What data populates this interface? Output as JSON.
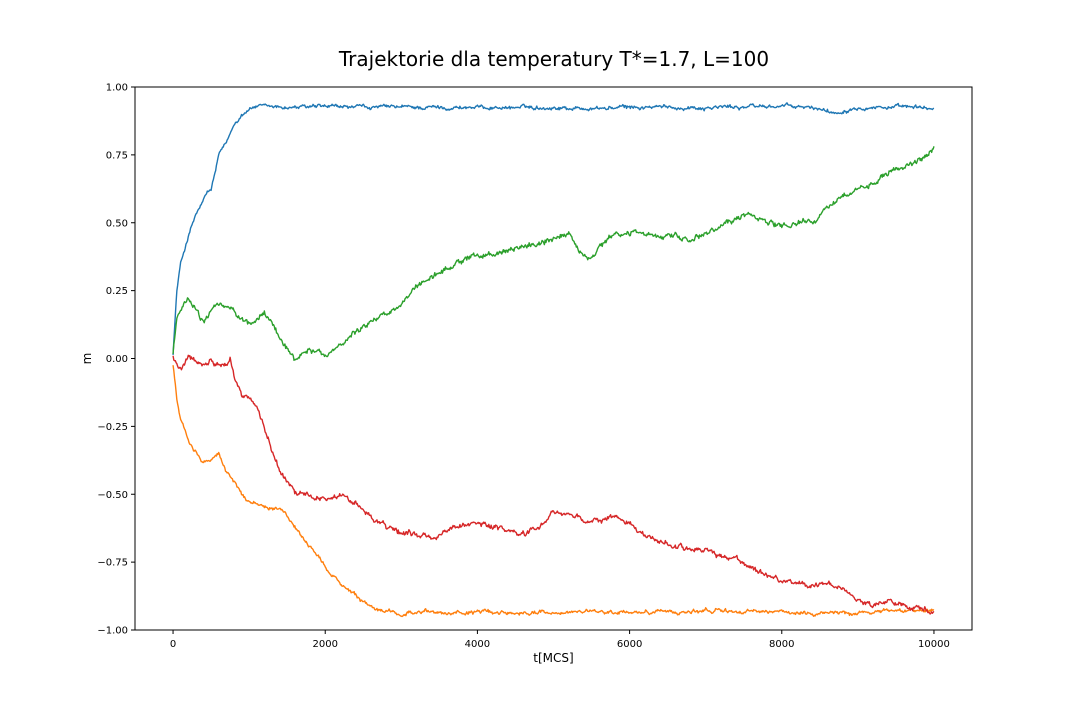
{
  "chart_data": {
    "type": "line",
    "title": "Trajektorie dla temperatury T*=1.7, L=100",
    "xlabel": "t[MCS]",
    "ylabel": "m",
    "xlim": [
      -500,
      10500
    ],
    "ylim": [
      -1.0,
      1.0
    ],
    "xticks": [
      0,
      2000,
      4000,
      6000,
      8000,
      10000
    ],
    "xtick_labels": [
      "0",
      "2000",
      "4000",
      "6000",
      "8000",
      "10000"
    ],
    "yticks": [
      -1.0,
      -0.75,
      -0.5,
      -0.25,
      0.0,
      0.25,
      0.5,
      0.75,
      1.0
    ],
    "ytick_labels": [
      "−1.00",
      "−0.75",
      "−0.50",
      "−0.25",
      "0.00",
      "0.25",
      "0.50",
      "0.75",
      "1.00"
    ],
    "grid": false,
    "legend": "none",
    "series": [
      {
        "color": "#1f77b4",
        "noise": 0.008,
        "x": [
          0,
          50,
          100,
          200,
          300,
          400,
          450,
          500,
          550,
          600,
          700,
          800,
          900,
          1000,
          1100,
          1200,
          1400,
          2000,
          3000,
          4000,
          5000,
          5500,
          6000,
          7000,
          8000,
          8500,
          8700,
          9000,
          10000
        ],
        "y": [
          0.02,
          0.25,
          0.35,
          0.45,
          0.53,
          0.58,
          0.61,
          0.62,
          0.68,
          0.75,
          0.79,
          0.86,
          0.9,
          0.92,
          0.93,
          0.925,
          0.925,
          0.925,
          0.925,
          0.925,
          0.925,
          0.92,
          0.925,
          0.925,
          0.93,
          0.92,
          0.905,
          0.93,
          0.92
        ]
      },
      {
        "color": "#ff7f0e",
        "noise": 0.008,
        "x": [
          0,
          50,
          100,
          200,
          300,
          400,
          500,
          600,
          700,
          800,
          900,
          1000,
          1200,
          1400,
          1600,
          1800,
          2000,
          2200,
          2400,
          2600,
          2800,
          3000,
          4000,
          5000,
          6000,
          7000,
          8000,
          9000,
          10000
        ],
        "y": [
          -0.02,
          -0.15,
          -0.23,
          -0.3,
          -0.34,
          -0.38,
          -0.37,
          -0.35,
          -0.42,
          -0.45,
          -0.5,
          -0.53,
          -0.54,
          -0.55,
          -0.62,
          -0.7,
          -0.77,
          -0.83,
          -0.88,
          -0.92,
          -0.935,
          -0.935,
          -0.935,
          -0.935,
          -0.935,
          -0.93,
          -0.935,
          -0.935,
          -0.92
        ]
      },
      {
        "color": "#2ca02c",
        "noise": 0.012,
        "x": [
          0,
          50,
          100,
          150,
          200,
          300,
          400,
          500,
          600,
          700,
          800,
          900,
          1000,
          1100,
          1200,
          1300,
          1400,
          1500,
          1600,
          1700,
          1800,
          1900,
          2000,
          2200,
          2400,
          2600,
          2800,
          3000,
          3200,
          3400,
          3600,
          3800,
          4000,
          4200,
          4400,
          4600,
          4800,
          5000,
          5200,
          5400,
          5500,
          5600,
          5800,
          6000,
          6200,
          6400,
          6600,
          6800,
          7000,
          7200,
          7400,
          7600,
          7800,
          8000,
          8200,
          8400,
          8600,
          8800,
          9000,
          9200,
          9400,
          9600,
          9800,
          10000
        ],
        "y": [
          0.02,
          0.15,
          0.18,
          0.2,
          0.22,
          0.18,
          0.13,
          0.17,
          0.2,
          0.19,
          0.17,
          0.14,
          0.12,
          0.14,
          0.17,
          0.13,
          0.08,
          0.04,
          0.0,
          0.02,
          0.04,
          0.02,
          0.0,
          0.06,
          0.1,
          0.14,
          0.17,
          0.2,
          0.26,
          0.3,
          0.33,
          0.36,
          0.39,
          0.38,
          0.39,
          0.41,
          0.42,
          0.44,
          0.46,
          0.38,
          0.36,
          0.41,
          0.45,
          0.46,
          0.47,
          0.44,
          0.46,
          0.43,
          0.47,
          0.49,
          0.51,
          0.53,
          0.5,
          0.49,
          0.5,
          0.5,
          0.56,
          0.6,
          0.63,
          0.65,
          0.68,
          0.7,
          0.73,
          0.77
        ]
      },
      {
        "color": "#d62728",
        "noise": 0.012,
        "x": [
          0,
          50,
          100,
          200,
          300,
          400,
          500,
          600,
          700,
          750,
          800,
          900,
          1000,
          1100,
          1200,
          1300,
          1400,
          1500,
          1600,
          1800,
          2000,
          2200,
          2400,
          2600,
          2800,
          3000,
          3200,
          3400,
          3600,
          3800,
          4000,
          4200,
          4400,
          4600,
          4800,
          5000,
          5200,
          5400,
          5600,
          5800,
          6000,
          6200,
          6400,
          6600,
          6800,
          7000,
          7200,
          7400,
          7600,
          7800,
          8000,
          8200,
          8400,
          8600,
          8800,
          9000,
          9200,
          9400,
          9600,
          9800,
          10000
        ],
        "y": [
          0.01,
          -0.01,
          -0.03,
          0.0,
          -0.01,
          -0.01,
          0.0,
          -0.02,
          -0.01,
          0.0,
          -0.06,
          -0.13,
          -0.15,
          -0.18,
          -0.26,
          -0.33,
          -0.41,
          -0.45,
          -0.49,
          -0.5,
          -0.51,
          -0.51,
          -0.53,
          -0.58,
          -0.62,
          -0.64,
          -0.65,
          -0.66,
          -0.63,
          -0.61,
          -0.61,
          -0.62,
          -0.63,
          -0.65,
          -0.63,
          -0.56,
          -0.58,
          -0.6,
          -0.6,
          -0.58,
          -0.61,
          -0.65,
          -0.68,
          -0.69,
          -0.7,
          -0.7,
          -0.73,
          -0.74,
          -0.76,
          -0.79,
          -0.82,
          -0.82,
          -0.83,
          -0.82,
          -0.85,
          -0.88,
          -0.91,
          -0.9,
          -0.92,
          -0.91,
          -0.93
        ]
      }
    ]
  }
}
